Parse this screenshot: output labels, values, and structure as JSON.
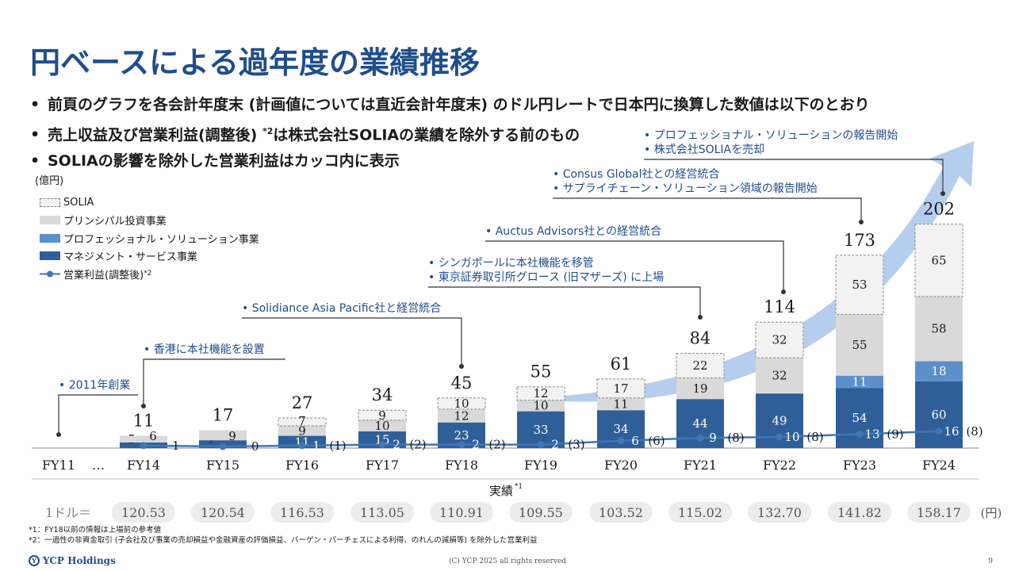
{
  "title": "円ベースによる過年度の業績推移",
  "bullets": [
    {
      "text": "前頁のグラフを各会計年度末 (計画値については直近会計年度末) のドル円レートで日本円に換算した数値は以下のとおり",
      "sup": ""
    },
    {
      "text": "売上収益及び営業利益(調整後) ",
      "sup": "*2",
      "text2": "は株式会社SOLIAの業績を除外する前のもの"
    },
    {
      "text": "SOLIAの影響を除外した営業利益はカッコ内に表示",
      "sup": ""
    }
  ],
  "unit_label": "(億円)",
  "legend": {
    "solia": "SOLIA",
    "principal": "プリンシパル投資事業",
    "professional": "プロフェッショナル・ソリューション事業",
    "management": "マネジメント・サービス事業",
    "op_income": "営業利益(調整後)",
    "op_income_sup": "*2"
  },
  "colors": {
    "management": "#2f5f99",
    "professional": "#5b8fcc",
    "principal": "#d9d9d9",
    "solia": "#f2f2f2",
    "line": "#3f76b8",
    "callout": "#1f4e8c",
    "arrow": "#a9c6ea"
  },
  "chart_data": {
    "type": "bar",
    "stacked": true,
    "categories": [
      "FY11",
      "FY14",
      "FY15",
      "FY16",
      "FY17",
      "FY18",
      "FY19",
      "FY20",
      "FY21",
      "FY22",
      "FY23",
      "FY24"
    ],
    "ellipsis_after_first": "…",
    "series": [
      {
        "name": "マネジメント・サービス事業",
        "values": [
          0,
          5,
          7,
          11,
          15,
          23,
          33,
          34,
          44,
          49,
          54,
          60
        ]
      },
      {
        "name": "プロフェッショナル・ソリューション事業",
        "values": [
          0,
          0,
          0,
          0,
          0,
          0,
          0,
          0,
          0,
          0,
          11,
          18
        ]
      },
      {
        "name": "プリンシパル投資事業",
        "values": [
          0,
          6,
          9,
          9,
          10,
          12,
          10,
          11,
          19,
          32,
          55,
          58
        ]
      },
      {
        "name": "SOLIA",
        "values": [
          0,
          0,
          0,
          7,
          9,
          10,
          12,
          17,
          22,
          32,
          53,
          65
        ]
      }
    ],
    "totals": [
      "",
      "11",
      "17",
      "27",
      "34",
      "45",
      "55",
      "61",
      "84",
      "114",
      "173",
      "202"
    ],
    "op_income": {
      "name": "営業利益(調整後)",
      "values": [
        null,
        1,
        0,
        1,
        2,
        2,
        2,
        6,
        9,
        10,
        13,
        16
      ],
      "labels": [
        "",
        "1",
        "0",
        "1",
        "2",
        "2",
        "2",
        "6",
        "9",
        "10",
        "13",
        "16"
      ],
      "excl_solia_labels": [
        "",
        "",
        "",
        "(1)",
        "(2)",
        "(2)",
        "(3)",
        "(6)",
        "(8)",
        "(8)",
        "(9)",
        "(8)"
      ]
    },
    "xlabel": "実績",
    "xlabel_sup": "*1",
    "fx_label": "1ドル＝",
    "fx_rates": [
      "",
      "120.53",
      "120.54",
      "116.53",
      "113.05",
      "110.91",
      "109.55",
      "103.52",
      "115.02",
      "132.70",
      "141.82",
      "158.17"
    ],
    "fx_unit": "(円)",
    "annotations": [
      {
        "year": "FY11",
        "lines": [
          "2011年創業"
        ]
      },
      {
        "year": "FY14",
        "lines": [
          "香港に本社機能を設置"
        ]
      },
      {
        "year": "FY18",
        "lines": [
          "Solidiance Asia Pacific社と経営統合"
        ]
      },
      {
        "year": "FY21",
        "lines": [
          "シンガポールに本社機能を移管",
          "東京証券取引所グロース (旧マザーズ) に上場"
        ]
      },
      {
        "year": "FY22",
        "lines": [
          "Auctus Advisors社との経営統合"
        ]
      },
      {
        "year": "FY23",
        "lines": [
          "Consus Global社との経営統合",
          "サプライチェーン・ソリューション領域の報告開始"
        ]
      },
      {
        "year": "FY24",
        "lines": [
          "プロフェッショナル・ソリューションの報告開始",
          "株式会社SOLIAを売却"
        ]
      }
    ]
  },
  "footnotes": [
    "*1：FY18以前の情報は上場前の参考値",
    "*2：一過性の非資金取引 (子会社及び事業の売却損益や金融資産の評価損益、バーゲン・パーチェスによる利得、のれんの減損等) を除外した営業利益"
  ],
  "footer": {
    "logo": "YCP Holdings",
    "logo_mark": "Y",
    "copyright": "(C) YCP 2025 all rights reserved",
    "page": "9"
  }
}
